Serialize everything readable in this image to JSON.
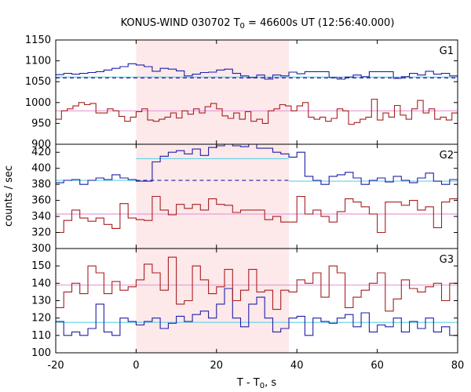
{
  "chart_data": {
    "type": "line",
    "title": "KONUS-WIND 030702 T",
    "title_sub": "0",
    "title_rest": " = 46600s UT (12:56:40.000)",
    "xlabel": "T - T",
    "xlabel_sub": "0",
    "xlabel_rest": ", s",
    "ylabel": "counts / sec",
    "xlim": [
      -20,
      80
    ],
    "xticks": [
      "-20",
      "0",
      "20",
      "40",
      "60",
      "80"
    ],
    "highlight_interval": [
      0,
      38
    ],
    "highlight_color": "#fde8ea",
    "colors": {
      "blue": "#1f1fa8",
      "red": "#a81f1f",
      "cyan": "#5fd3e6",
      "pink": "#e89ad6"
    },
    "panels": [
      {
        "label": "G1",
        "ylim": [
          900,
          1150
        ],
        "yticks": [
          900,
          950,
          1000,
          1050,
          1100,
          1150
        ],
        "x_start": -20,
        "bin_width": 2,
        "series": [
          {
            "color": "blue",
            "values": [
              1067,
              1070,
              1068,
              1070,
              1072,
              1074,
              1078,
              1082,
              1086,
              1093,
              1090,
              1086,
              1075,
              1082,
              1080,
              1076,
              1064,
              1068,
              1072,
              1073,
              1078,
              1080,
              1070,
              1064,
              1060,
              1066,
              1056,
              1066,
              1064,
              1073,
              1069,
              1074,
              1074,
              1074,
              1060,
              1056,
              1061,
              1066,
              1062,
              1074,
              1074,
              1074,
              1058,
              1062,
              1070,
              1066,
              1075,
              1068,
              1070,
              1064
            ]
          },
          {
            "color": "red",
            "values": [
              960,
              980,
              985,
              992,
              1000,
              995,
              998,
              975,
              975,
              985,
              980,
              967,
              955,
              965,
              978,
              985,
              958,
              955,
              960,
              965,
              975,
              963,
              980,
              972,
              985,
              975,
              990,
              998,
              985,
              968,
              962,
              975,
              960,
              978,
              955,
              960,
              950,
              980,
              985,
              995,
              992,
              980,
              992,
              1000,
              965,
              960,
              965,
              955,
              962,
              985,
              980,
              948,
              952,
              960,
              965,
              1008,
              958,
              975,
              965,
              993,
              970,
              960,
              985,
              1005,
              975,
              985,
              960,
              965,
              958,
              975
            ]
          }
        ],
        "fits": [
          {
            "color": "cyan",
            "style": "solid",
            "y": 1061,
            "from": -20,
            "to": 80
          },
          {
            "color": "blue",
            "style": "dashed",
            "y": 1059,
            "from": -20,
            "to": 80
          },
          {
            "color": "pink",
            "style": "solid",
            "y": 980,
            "from": -20,
            "to": 80
          }
        ]
      },
      {
        "label": "G2",
        "ylim": [
          300,
          430
        ],
        "yticks": [
          300,
          320,
          340,
          360,
          380,
          400,
          420
        ],
        "x_start": -20,
        "bin_width": 2,
        "series": [
          {
            "color": "blue",
            "values": [
              382,
              385,
              386,
              380,
              385,
              388,
              386,
              392,
              388,
              386,
              384,
              384,
              408,
              415,
              420,
              422,
              418,
              424,
              416,
              426,
              428,
              430,
              428,
              427,
              430,
              425,
              425,
              420,
              418,
              414,
              420,
              390,
              385,
              380,
              390,
              392,
              395,
              388,
              380,
              385,
              388,
              383,
              390,
              385,
              382,
              388,
              394,
              384,
              380,
              386
            ]
          },
          {
            "color": "red",
            "values": [
              320,
              335,
              348,
              338,
              334,
              338,
              330,
              325,
              356,
              338,
              336,
              335,
              365,
              348,
              342,
              355,
              350,
              355,
              348,
              362,
              355,
              354,
              345,
              348,
              348,
              348,
              336,
              340,
              333,
              333,
              365,
              343,
              348,
              340,
              333,
              346,
              362,
              358,
              352,
              343,
              320,
              358,
              358,
              354,
              360,
              348,
              352,
              326,
              358,
              362
            ]
          }
        ],
        "fits": [
          {
            "color": "cyan",
            "style": "solid",
            "y": 385,
            "from": -20,
            "to": 0
          },
          {
            "color": "cyan",
            "style": "solid",
            "y": 412,
            "from": 0,
            "to": 38
          },
          {
            "color": "blue",
            "style": "dashed",
            "y": 385,
            "from": 0,
            "to": 38
          },
          {
            "color": "cyan",
            "style": "solid",
            "y": 384,
            "from": 38,
            "to": 80
          },
          {
            "color": "pink",
            "style": "solid",
            "y": 343,
            "from": -20,
            "to": 80
          }
        ]
      },
      {
        "label": "G3",
        "ylim": [
          100,
          160
        ],
        "yticks": [
          100,
          110,
          120,
          130,
          140,
          150
        ],
        "x_start": -20,
        "bin_width": 2,
        "series": [
          {
            "color": "blue",
            "values": [
              118,
              110,
              112,
              110,
              114,
              128,
              112,
              110,
              120,
              118,
              116,
              118,
              120,
              114,
              117,
              121,
              118,
              122,
              124,
              120,
              128,
              137,
              120,
              115,
              128,
              132,
              120,
              112,
              114,
              120,
              121,
              110,
              120,
              118,
              117,
              120,
              122,
              115,
              123,
              112,
              116,
              115,
              120,
              112,
              118,
              114,
              120,
              112,
              115,
              110
            ]
          },
          {
            "color": "red",
            "values": [
              126,
              135,
              140,
              134,
              150,
              146,
              134,
              141,
              136,
              138,
              142,
              151,
              146,
              136,
              155,
              128,
              130,
              150,
              142,
              134,
              138,
              148,
              130,
              136,
              148,
              135,
              136,
              125,
              136,
              135,
              142,
              140,
              146,
              132,
              150,
              146,
              126,
              132,
              136,
              140,
              146,
              124,
              131,
              142,
              137,
              135,
              138,
              140,
              130,
              140
            ]
          }
        ],
        "fits": [
          {
            "color": "cyan",
            "style": "solid",
            "y": 117.5,
            "from": -20,
            "to": 80
          },
          {
            "color": "pink",
            "style": "solid",
            "y": 139,
            "from": -20,
            "to": 80
          }
        ]
      }
    ]
  }
}
